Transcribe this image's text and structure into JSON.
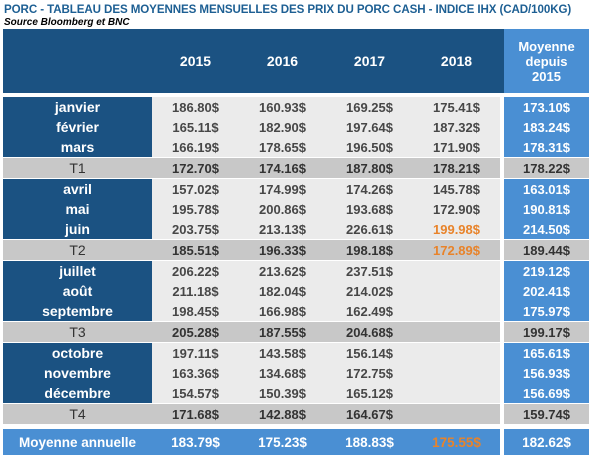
{
  "title": "PORC - TABLEAU DES MOYENNES MENSUELLES DES PRIX DU PORC CASH - INDICE IHX (CAD/100KG)",
  "source": "Source Bloomberg et BNC",
  "headers": {
    "years": [
      "2015",
      "2016",
      "2017",
      "2018"
    ],
    "avg_line1": "Moyenne",
    "avg_line2": "depuis",
    "avg_line3": "2015"
  },
  "rows": [
    {
      "type": "month",
      "label": "janvier",
      "values": [
        "186.80$",
        "160.93$",
        "169.25$",
        "175.41$"
      ],
      "avg": "173.10$"
    },
    {
      "type": "month",
      "label": "février",
      "values": [
        "165.11$",
        "182.90$",
        "197.64$",
        "187.32$"
      ],
      "avg": "183.24$"
    },
    {
      "type": "month",
      "label": "mars",
      "values": [
        "166.19$",
        "178.65$",
        "196.50$",
        "171.90$"
      ],
      "avg": "178.31$"
    },
    {
      "type": "quarter",
      "label": "T1",
      "values": [
        "172.70$",
        "174.16$",
        "187.80$",
        "178.21$"
      ],
      "avg": "178.22$"
    },
    {
      "type": "month",
      "label": "avril",
      "values": [
        "157.02$",
        "174.99$",
        "174.26$",
        "145.78$"
      ],
      "avg": "163.01$"
    },
    {
      "type": "month",
      "label": "mai",
      "values": [
        "195.78$",
        "200.86$",
        "193.68$",
        "172.90$"
      ],
      "avg": "190.81$"
    },
    {
      "type": "month",
      "label": "juin",
      "values": [
        "203.75$",
        "213.13$",
        "226.61$",
        "199.98$"
      ],
      "avg": "214.50$",
      "highlight": 3
    },
    {
      "type": "quarter",
      "label": "T2",
      "values": [
        "185.51$",
        "196.33$",
        "198.18$",
        "172.89$"
      ],
      "avg": "189.44$",
      "highlight": 3
    },
    {
      "type": "month",
      "label": "juillet",
      "values": [
        "206.22$",
        "213.62$",
        "237.51$",
        ""
      ],
      "avg": "219.12$"
    },
    {
      "type": "month",
      "label": "août",
      "values": [
        "211.18$",
        "182.04$",
        "214.02$",
        ""
      ],
      "avg": "202.41$"
    },
    {
      "type": "month",
      "label": "septembre",
      "values": [
        "198.45$",
        "166.98$",
        "162.49$",
        ""
      ],
      "avg": "175.97$"
    },
    {
      "type": "quarter",
      "label": "T3",
      "values": [
        "205.28$",
        "187.55$",
        "204.68$",
        ""
      ],
      "avg": "199.17$"
    },
    {
      "type": "month",
      "label": "octobre",
      "values": [
        "197.11$",
        "143.58$",
        "156.14$",
        ""
      ],
      "avg": "165.61$"
    },
    {
      "type": "month",
      "label": "novembre",
      "values": [
        "163.36$",
        "134.68$",
        "172.75$",
        ""
      ],
      "avg": "156.93$"
    },
    {
      "type": "month",
      "label": "décembre",
      "values": [
        "154.57$",
        "150.39$",
        "165.12$",
        ""
      ],
      "avg": "156.69$"
    },
    {
      "type": "quarter",
      "label": "T4",
      "values": [
        "171.68$",
        "142.88$",
        "164.67$",
        ""
      ],
      "avg": "159.74$"
    },
    {
      "type": "annual",
      "label": "Moyenne annuelle",
      "values": [
        "183.79$",
        "175.23$",
        "188.83$",
        "175.55$"
      ],
      "avg": "182.62$",
      "highlight": 3
    }
  ],
  "colors": {
    "dark_blue": "#1b5282",
    "light_blue": "#4a8fd3",
    "orange": "#e8832a",
    "grey_cell": "#ebebeb",
    "quarter_grey": "#c8c8c8"
  }
}
